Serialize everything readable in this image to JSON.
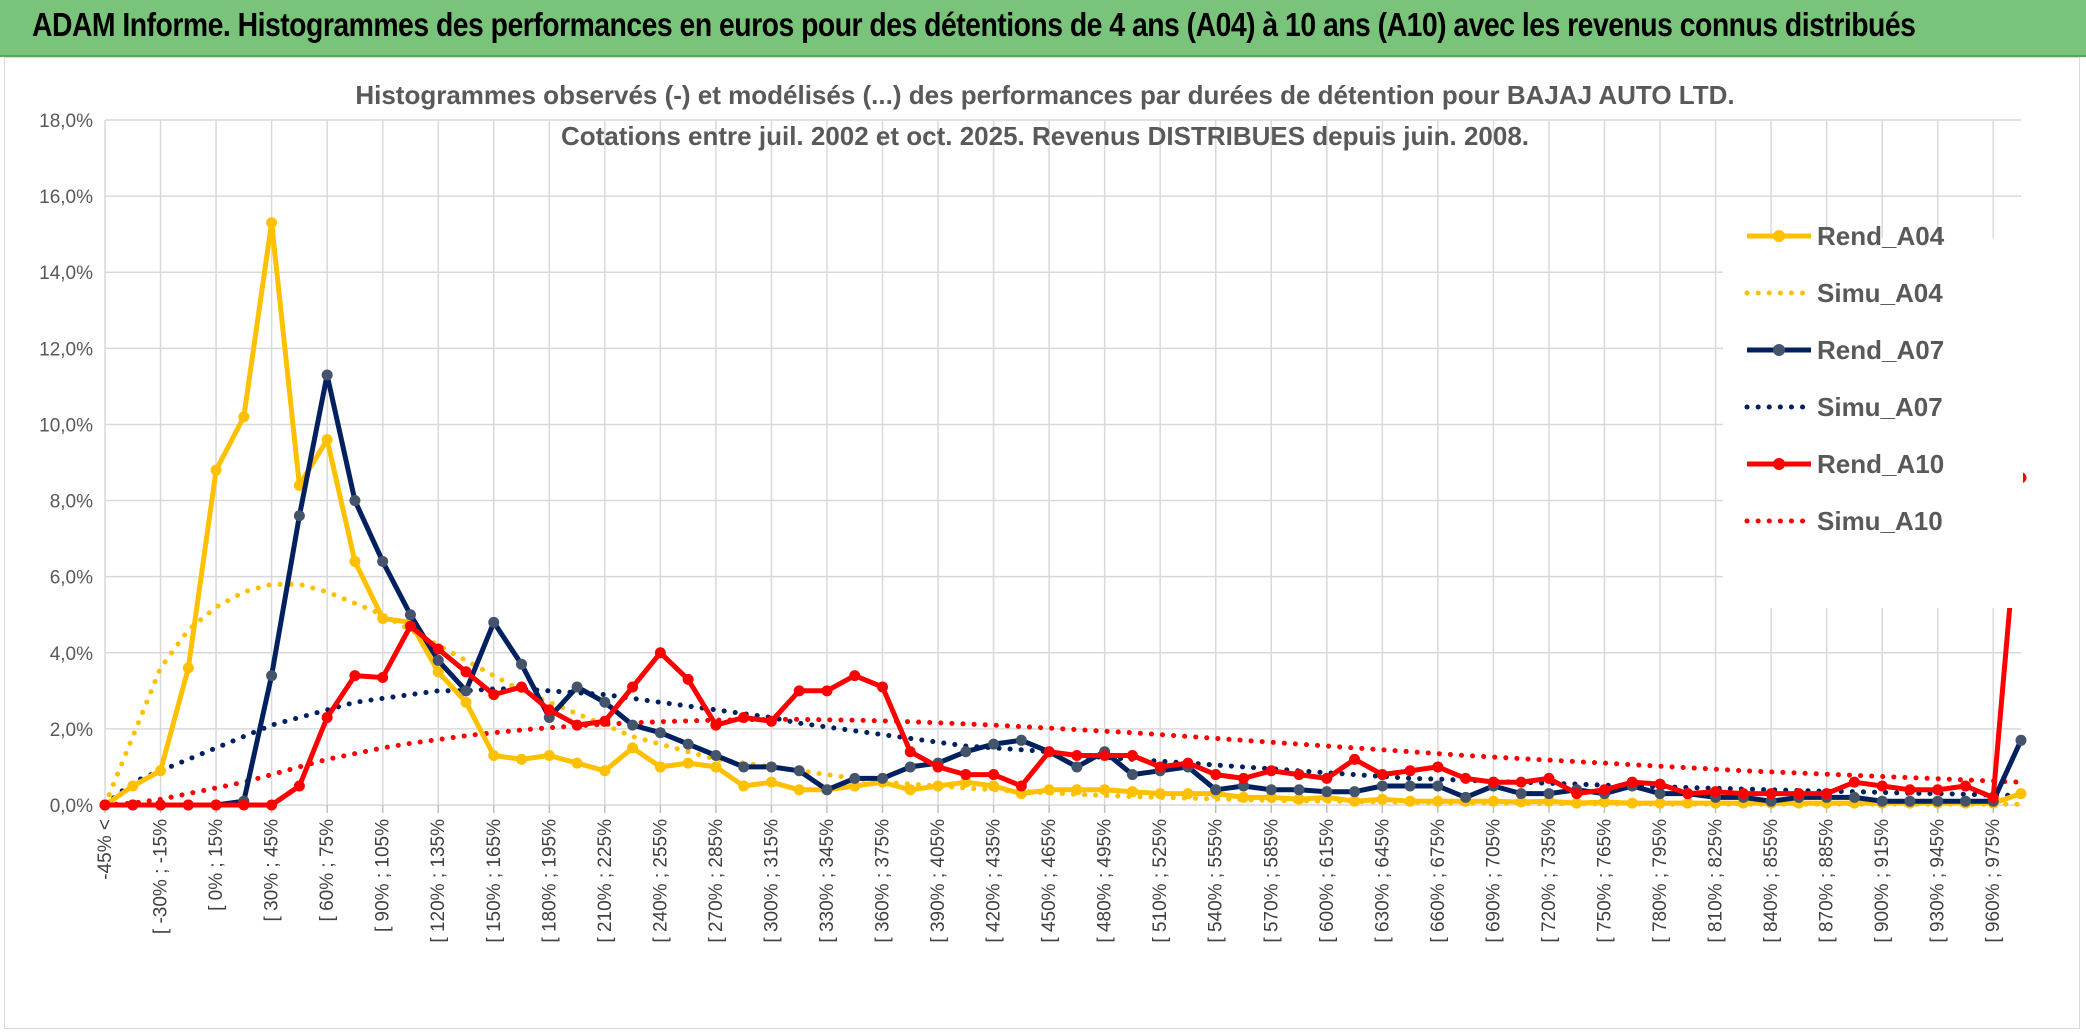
{
  "header": {
    "title": "ADAM Informe. Histogrammes des performances en euros pour des détentions de 4 ans (A04) à 10 ans (A10) avec les revenus connus distribués"
  },
  "colors": {
    "header_bg": "#79c47a",
    "a04": "#ffc000",
    "a07": "#002060",
    "a10": "#ff0000",
    "marker_a07": "#44546a",
    "grid": "#d9d9d9"
  },
  "chart_data": {
    "type": "line",
    "title": "Histogrammes observés (-) et modélisés (...) des performances par durées de détention pour BAJAJ AUTO LTD.",
    "subtitle": "Cotations entre juil. 2002 et oct. 2025. Revenus DISTRIBUES depuis juin. 2008.",
    "xlabel": "",
    "ylabel": "",
    "ylim": [
      0,
      18
    ],
    "yticks": [
      "0,0%",
      "2,0%",
      "4,0%",
      "6,0%",
      "8,0%",
      "10,0%",
      "12,0%",
      "14,0%",
      "16,0%",
      "18,0%"
    ],
    "grid": true,
    "legend_position": "right",
    "tick_labels": [
      "-45% <",
      "[ -30% ; -15%",
      "[ 0% ; 15%",
      "[ 30% ; 45%",
      "[ 60% ; 75%",
      "[ 90% ; 105%",
      "[ 120% ; 135%",
      "[ 150% ; 165%",
      "[ 180% ; 195%",
      "[ 210% ; 225%",
      "[ 240% ; 255%",
      "[ 270% ; 285%",
      "[ 300% ; 315%",
      "[ 330% ; 345%",
      "[ 360% ; 375%",
      "[ 390% ; 405%",
      "[ 420% ; 435%",
      "[ 450% ; 465%",
      "[ 480% ; 495%",
      "[ 510% ; 525%",
      "[ 540% ; 555%",
      "[ 570% ; 585%",
      "[ 600% ; 615%",
      "[ 630% ; 645%",
      "[ 660% ; 675%",
      "[ 690% ; 705%",
      "[ 720% ; 735%",
      "[ 750% ; 765%",
      "[ 780% ; 795%",
      "[ 810% ; 825%",
      "[ 840% ; 855%",
      "[ 870% ; 885%",
      "[ 900% ; 915%",
      "[ 930% ; 945%",
      "[ 960% ; 975%"
    ],
    "n_bins": 70,
    "series": [
      {
        "name": "Rend_A04",
        "style": "solid",
        "color": "#ffc000",
        "values": [
          0.0,
          0.5,
          0.9,
          3.6,
          8.8,
          10.2,
          15.3,
          8.4,
          9.6,
          6.4,
          4.9,
          4.8,
          3.5,
          2.7,
          1.3,
          1.2,
          1.3,
          1.1,
          0.9,
          1.5,
          1.0,
          1.1,
          1.0,
          0.5,
          0.6,
          0.4,
          0.4,
          0.5,
          0.6,
          0.4,
          0.5,
          0.6,
          0.5,
          0.3,
          0.4,
          0.4,
          0.4,
          0.35,
          0.3,
          0.3,
          0.3,
          0.2,
          0.2,
          0.15,
          0.2,
          0.1,
          0.15,
          0.1,
          0.1,
          0.1,
          0.1,
          0.08,
          0.1,
          0.05,
          0.08,
          0.05,
          0.05,
          0.05,
          0.05,
          0.05,
          0.05,
          0.05,
          0.05,
          0.05,
          0.05,
          0.05,
          0.05,
          0.05,
          0.05,
          0.3
        ]
      },
      {
        "name": "Simu_A04",
        "style": "dotted",
        "color": "#ffc000",
        "values": [
          0.0,
          1.8,
          3.6,
          4.6,
          5.2,
          5.6,
          5.8,
          5.8,
          5.6,
          5.3,
          5.0,
          4.6,
          4.2,
          3.8,
          3.4,
          3.0,
          2.7,
          2.4,
          2.1,
          1.8,
          1.6,
          1.4,
          1.2,
          1.1,
          1.0,
          0.9,
          0.8,
          0.7,
          0.6,
          0.55,
          0.5,
          0.45,
          0.4,
          0.36,
          0.32,
          0.28,
          0.25,
          0.22,
          0.2,
          0.18,
          0.16,
          0.14,
          0.12,
          0.11,
          0.1,
          0.09,
          0.08,
          0.07,
          0.06,
          0.05,
          0.05,
          0.04,
          0.04,
          0.03,
          0.03,
          0.03,
          0.02,
          0.02,
          0.02,
          0.02,
          0.02,
          0.02,
          0.02,
          0.02,
          0.02,
          0.02,
          0.02,
          0.02,
          0.02,
          0.02
        ]
      },
      {
        "name": "Rend_A07",
        "style": "solid",
        "color": "#002060",
        "values": [
          0.0,
          0.0,
          0.0,
          0.0,
          0.0,
          0.1,
          3.4,
          7.6,
          11.3,
          8.0,
          6.4,
          5.0,
          3.8,
          3.0,
          4.8,
          3.7,
          2.3,
          3.1,
          2.7,
          2.1,
          1.9,
          1.6,
          1.3,
          1.0,
          1.0,
          0.9,
          0.4,
          0.7,
          0.7,
          1.0,
          1.1,
          1.4,
          1.6,
          1.7,
          1.4,
          1.0,
          1.4,
          0.8,
          0.9,
          1.0,
          0.4,
          0.5,
          0.4,
          0.4,
          0.35,
          0.35,
          0.5,
          0.5,
          0.5,
          0.2,
          0.5,
          0.3,
          0.3,
          0.4,
          0.3,
          0.5,
          0.3,
          0.3,
          0.2,
          0.2,
          0.1,
          0.2,
          0.2,
          0.2,
          0.1,
          0.1,
          0.1,
          0.1,
          0.1,
          1.7
        ]
      },
      {
        "name": "Simu_A07",
        "style": "dotted",
        "color": "#002060",
        "values": [
          0.0,
          0.6,
          0.9,
          1.2,
          1.5,
          1.8,
          2.1,
          2.3,
          2.5,
          2.7,
          2.8,
          2.9,
          3.0,
          3.0,
          3.05,
          3.05,
          3.0,
          2.95,
          2.9,
          2.8,
          2.7,
          2.6,
          2.5,
          2.4,
          2.3,
          2.15,
          2.05,
          1.95,
          1.85,
          1.75,
          1.65,
          1.55,
          1.5,
          1.45,
          1.4,
          1.3,
          1.25,
          1.2,
          1.15,
          1.1,
          1.05,
          1.0,
          0.95,
          0.9,
          0.85,
          0.8,
          0.75,
          0.7,
          0.68,
          0.65,
          0.62,
          0.6,
          0.57,
          0.55,
          0.52,
          0.5,
          0.48,
          0.46,
          0.44,
          0.42,
          0.4,
          0.38,
          0.36,
          0.35,
          0.33,
          0.31,
          0.3,
          0.28,
          0.26,
          0.25
        ]
      },
      {
        "name": "Rend_A10",
        "style": "solid",
        "color": "#ff0000",
        "values": [
          0.0,
          0.0,
          0.0,
          0.0,
          0.0,
          0.0,
          0.0,
          0.5,
          2.3,
          3.4,
          3.35,
          4.7,
          4.1,
          3.5,
          2.9,
          3.1,
          2.5,
          2.1,
          2.2,
          3.1,
          4.0,
          3.3,
          2.1,
          2.3,
          2.2,
          3.0,
          3.0,
          3.4,
          3.1,
          1.4,
          1.0,
          0.8,
          0.8,
          0.5,
          1.4,
          1.3,
          1.3,
          1.3,
          1.0,
          1.1,
          0.8,
          0.7,
          0.9,
          0.8,
          0.7,
          1.2,
          0.8,
          0.9,
          1.0,
          0.7,
          0.6,
          0.6,
          0.7,
          0.3,
          0.4,
          0.6,
          0.55,
          0.3,
          0.35,
          0.3,
          0.3,
          0.3,
          0.3,
          0.6,
          0.5,
          0.4,
          0.4,
          0.5,
          0.2,
          8.6
        ]
      },
      {
        "name": "Simu_A10",
        "style": "dotted",
        "color": "#ff0000",
        "values": [
          0.0,
          0.05,
          0.15,
          0.3,
          0.45,
          0.6,
          0.8,
          1.0,
          1.2,
          1.35,
          1.5,
          1.62,
          1.72,
          1.82,
          1.9,
          1.97,
          2.03,
          2.08,
          2.12,
          2.16,
          2.19,
          2.21,
          2.23,
          2.24,
          2.25,
          2.25,
          2.24,
          2.23,
          2.21,
          2.19,
          2.16,
          2.13,
          2.1,
          2.06,
          2.02,
          1.98,
          1.94,
          1.9,
          1.85,
          1.8,
          1.75,
          1.7,
          1.65,
          1.6,
          1.55,
          1.5,
          1.45,
          1.4,
          1.35,
          1.3,
          1.26,
          1.22,
          1.18,
          1.14,
          1.1,
          1.06,
          1.02,
          0.98,
          0.94,
          0.9,
          0.87,
          0.84,
          0.81,
          0.78,
          0.75,
          0.72,
          0.69,
          0.66,
          0.63,
          0.6
        ]
      }
    ]
  }
}
